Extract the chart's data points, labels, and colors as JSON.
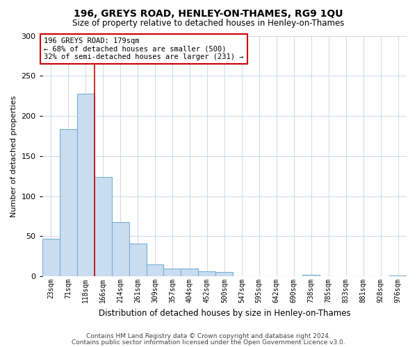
{
  "title": "196, GREYS ROAD, HENLEY-ON-THAMES, RG9 1QU",
  "subtitle": "Size of property relative to detached houses in Henley-on-Thames",
  "xlabel": "Distribution of detached houses by size in Henley-on-Thames",
  "ylabel": "Number of detached properties",
  "bar_labels": [
    "23sqm",
    "71sqm",
    "118sqm",
    "166sqm",
    "214sqm",
    "261sqm",
    "309sqm",
    "357sqm",
    "404sqm",
    "452sqm",
    "500sqm",
    "547sqm",
    "595sqm",
    "642sqm",
    "690sqm",
    "738sqm",
    "785sqm",
    "833sqm",
    "881sqm",
    "928sqm",
    "976sqm"
  ],
  "bar_values": [
    47,
    184,
    228,
    124,
    68,
    41,
    15,
    10,
    10,
    6,
    5,
    0,
    0,
    0,
    0,
    2,
    0,
    0,
    0,
    0,
    1
  ],
  "bar_color": "#c9ddf0",
  "bar_edge_color": "#7aafd4",
  "vline_color": "#cc0000",
  "annotation_title": "196 GREYS ROAD: 179sqm",
  "annotation_line1": "← 68% of detached houses are smaller (500)",
  "annotation_line2": "32% of semi-detached houses are larger (231) →",
  "annotation_box_color": "#ffffff",
  "annotation_box_edge": "#cc0000",
  "ylim": [
    0,
    300
  ],
  "yticks": [
    0,
    50,
    100,
    150,
    200,
    250,
    300
  ],
  "footer1": "Contains HM Land Registry data © Crown copyright and database right 2024.",
  "footer2": "Contains public sector information licensed under the Open Government Licence v3.0.",
  "background_color": "#ffffff",
  "grid_color": "#d0d8e8"
}
